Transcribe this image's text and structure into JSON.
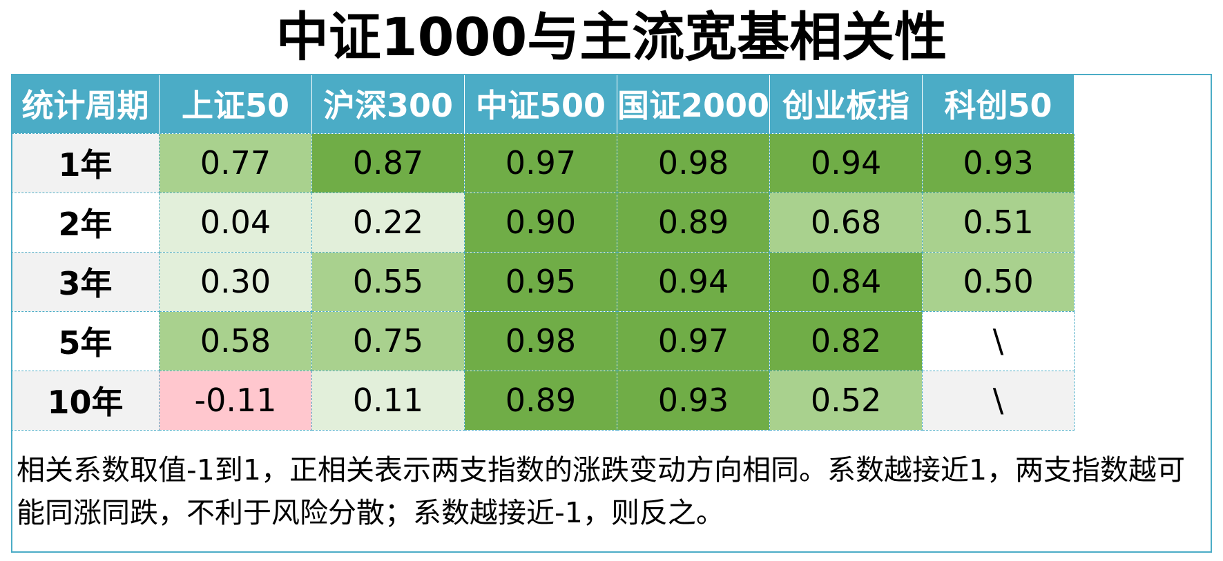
{
  "title": "中证1000与主流宽基相关性",
  "colors": {
    "header_bg": "#4bacc6",
    "header_text": "#ffffff",
    "strong": "#70ad47",
    "medium": "#a9d18e",
    "weak": "#e2efda",
    "negative": "#ffc7ce",
    "row_alt": "#f2f2f2",
    "row_plain": "#ffffff"
  },
  "chart_data": {
    "type": "table",
    "title": "中证1000与主流宽基相关性",
    "columns": [
      "统计周期",
      "上证50",
      "沪深300",
      "中证500",
      "国证2000",
      "创业板指",
      "科创50"
    ],
    "rows": [
      {
        "period": "1年",
        "values": [
          "0.77",
          "0.87",
          "0.97",
          "0.98",
          "0.94",
          "0.93"
        ]
      },
      {
        "period": "2年",
        "values": [
          "0.04",
          "0.22",
          "0.90",
          "0.89",
          "0.68",
          "0.51"
        ]
      },
      {
        "period": "3年",
        "values": [
          "0.30",
          "0.55",
          "0.95",
          "0.94",
          "0.84",
          "0.50"
        ]
      },
      {
        "period": "5年",
        "values": [
          "0.58",
          "0.75",
          "0.98",
          "0.97",
          "0.82",
          "\\"
        ]
      },
      {
        "period": "10年",
        "values": [
          "-0.11",
          "0.11",
          "0.89",
          "0.93",
          "0.52",
          "\\"
        ]
      }
    ],
    "cell_shading": [
      [
        "medium",
        "strong",
        "strong",
        "strong",
        "strong",
        "strong"
      ],
      [
        "weak",
        "weak",
        "strong",
        "strong",
        "medium",
        "medium"
      ],
      [
        "weak",
        "medium",
        "strong",
        "strong",
        "strong",
        "medium"
      ],
      [
        "medium",
        "medium",
        "strong",
        "strong",
        "strong",
        "none"
      ],
      [
        "negative",
        "weak",
        "strong",
        "strong",
        "medium",
        "none"
      ]
    ]
  },
  "note": "相关系数取值-1到1，正相关表示两支指数的涨跌变动方向相同。系数越接近1，两支指数越可能同涨同跌，不利于风险分散；系数越接近-1，则反之。"
}
